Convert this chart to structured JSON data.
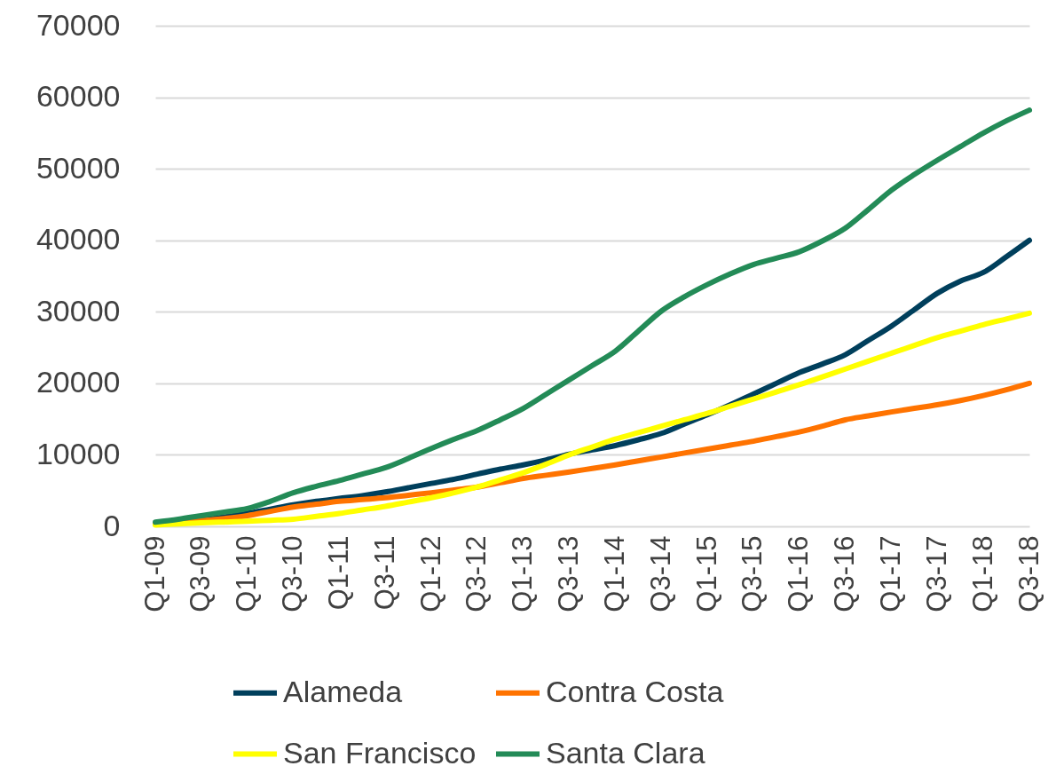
{
  "chart_data": {
    "type": "line",
    "categories": [
      "Q1-09",
      null,
      "Q3-09",
      null,
      "Q1-10",
      null,
      "Q3-10",
      null,
      "Q1-11",
      null,
      "Q3-11",
      null,
      "Q1-12",
      null,
      "Q3-12",
      null,
      "Q1-13",
      null,
      "Q3-13",
      null,
      "Q1-14",
      null,
      "Q3-14",
      null,
      "Q1-15",
      null,
      "Q3-15",
      null,
      "Q1-16",
      null,
      "Q3-16",
      null,
      "Q1-17",
      null,
      "Q3-17",
      null,
      "Q1-18",
      null,
      "Q3-18"
    ],
    "series": [
      {
        "name": "Alameda",
        "color": "#003f5c",
        "values": [
          300,
          600,
          900,
          1300,
          1800,
          2400,
          3000,
          3500,
          3900,
          4300,
          4800,
          5400,
          6000,
          6600,
          7300,
          8000,
          8600,
          9300,
          10100,
          10700,
          11300,
          12100,
          13000,
          14300,
          15600,
          17000,
          18500,
          20000,
          21500,
          22700,
          24000,
          26000,
          28000,
          30300,
          32600,
          34300,
          35500,
          37700,
          40000
        ]
      },
      {
        "name": "Contra Costa",
        "color": "#ff7300",
        "values": [
          300,
          550,
          800,
          1100,
          1500,
          2100,
          2700,
          3100,
          3500,
          3750,
          4000,
          4350,
          4700,
          5100,
          5500,
          6100,
          6700,
          7150,
          7600,
          8100,
          8600,
          9150,
          9700,
          10250,
          10800,
          11350,
          11900,
          12550,
          13200,
          14000,
          14900,
          15450,
          16000,
          16500,
          17000,
          17600,
          18300,
          19100,
          20000
        ]
      },
      {
        "name": "San Francisco",
        "color": "#ffff00",
        "values": [
          200,
          350,
          500,
          600,
          700,
          850,
          1000,
          1400,
          1800,
          2300,
          2800,
          3400,
          4000,
          4700,
          5500,
          6500,
          7500,
          8700,
          10000,
          11100,
          12200,
          13100,
          14000,
          14900,
          15800,
          16800,
          17800,
          18800,
          19800,
          20900,
          22000,
          23100,
          24200,
          25300,
          26400,
          27300,
          28200,
          29000,
          29800
        ]
      },
      {
        "name": "Santa Clara",
        "color": "#238b57",
        "values": [
          600,
          1000,
          1500,
          2000,
          2500,
          3500,
          4700,
          5600,
          6400,
          7300,
          8200,
          9500,
          10900,
          12200,
          13400,
          14900,
          16500,
          18500,
          20500,
          22500,
          24500,
          27300,
          30100,
          32100,
          33800,
          35300,
          36600,
          37500,
          38400,
          39900,
          41700,
          44300,
          47000,
          49200,
          51200,
          53100,
          55000,
          56700,
          58200
        ]
      }
    ],
    "ylim": [
      0,
      70000
    ],
    "yticks": [
      0,
      10000,
      20000,
      30000,
      40000,
      50000,
      60000,
      70000
    ],
    "grid": "y",
    "legend": "bottom",
    "marker": "none",
    "line_style": "solid"
  }
}
